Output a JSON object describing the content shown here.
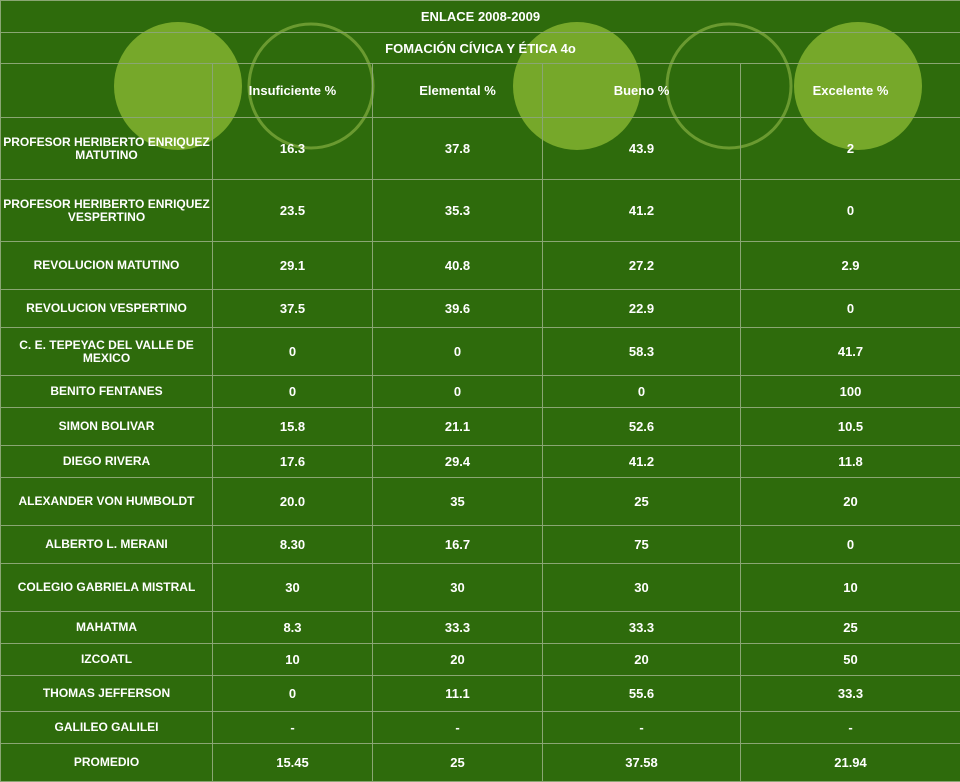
{
  "table": {
    "title": "ENLACE 2008-2009",
    "subtitle": "FOMACIÓN CÍVICA Y ÉTICA 4o",
    "columns": [
      "Insuficiente %",
      "Elemental %",
      "Bueno %",
      "Excelente %"
    ],
    "rows": [
      {
        "name": "PROFESOR HERIBERTO ENRIQUEZ MATUTINO",
        "values": [
          "16.3",
          "37.8",
          "43.9",
          "2"
        ]
      },
      {
        "name": "PROFESOR HERIBERTO ENRIQUEZ VESPERTINO",
        "values": [
          "23.5",
          "35.3",
          "41.2",
          "0"
        ]
      },
      {
        "name": "REVOLUCION MATUTINO",
        "values": [
          "29.1",
          "40.8",
          "27.2",
          "2.9"
        ]
      },
      {
        "name": "REVOLUCION VESPERTINO",
        "values": [
          "37.5",
          "39.6",
          "22.9",
          "0"
        ]
      },
      {
        "name": "C. E. TEPEYAC DEL VALLE DE MEXICO",
        "values": [
          "0",
          "0",
          "58.3",
          "41.7"
        ]
      },
      {
        "name": "BENITO FENTANES",
        "values": [
          "0",
          "0",
          "0",
          "100"
        ]
      },
      {
        "name": "SIMON BOLIVAR",
        "values": [
          "15.8",
          "21.1",
          "52.6",
          "10.5"
        ]
      },
      {
        "name": "DIEGO RIVERA",
        "values": [
          "17.6",
          "29.4",
          "41.2",
          "11.8"
        ]
      },
      {
        "name": "ALEXANDER VON HUMBOLDT",
        "values": [
          "20.0",
          "35",
          "25",
          "20"
        ]
      },
      {
        "name": "ALBERTO L. MERANI",
        "values": [
          "8.30",
          "16.7",
          "75",
          "0"
        ]
      },
      {
        "name": "COLEGIO GABRIELA MISTRAL",
        "values": [
          "30",
          "30",
          "30",
          "10"
        ]
      },
      {
        "name": "MAHATMA",
        "values": [
          "8.3",
          "33.3",
          "33.3",
          "25"
        ]
      },
      {
        "name": "IZCOATL",
        "values": [
          "10",
          "20",
          "20",
          "50"
        ]
      },
      {
        "name": "THOMAS JEFFERSON",
        "values": [
          "0",
          "11.1",
          "55.6",
          "33.3"
        ]
      },
      {
        "name": "GALILEO GALILEI",
        "values": [
          "-",
          "-",
          "-",
          "-"
        ]
      },
      {
        "name": "PROMEDIO",
        "values": [
          "15.45",
          "25",
          "37.58",
          "21.94"
        ]
      }
    ]
  },
  "colors": {
    "background": "#2e6b0c",
    "circle_fill": "#76a82a",
    "circle_outline": "#6a9a30",
    "grid": "#8aa673",
    "text": "#ffffff"
  }
}
